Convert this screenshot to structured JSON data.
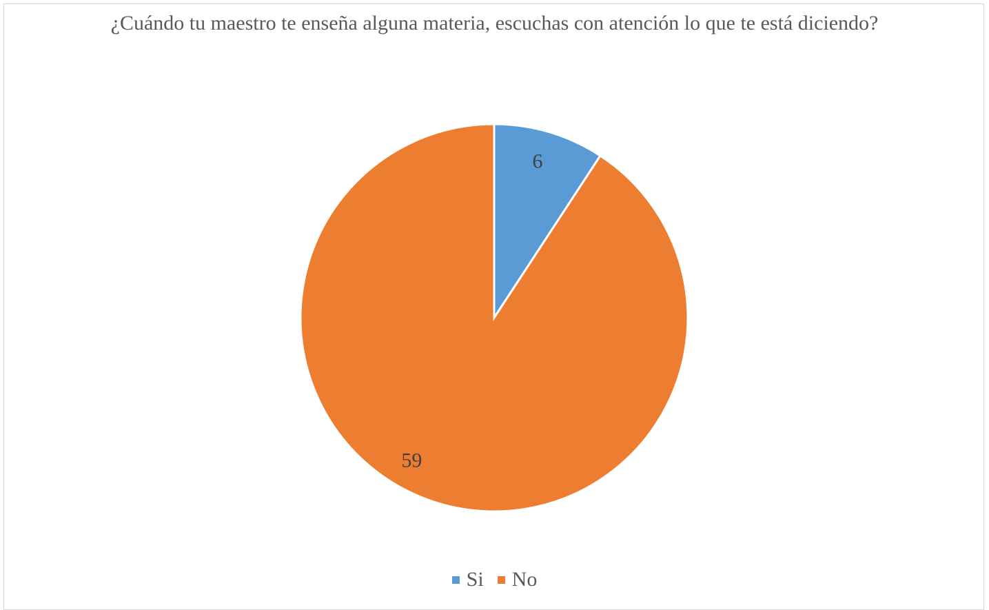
{
  "chart_data": {
    "type": "pie",
    "title": "¿Cuándo tu maestro te enseña alguna materia, escuchas con atención lo que te está diciendo?",
    "categories": [
      "Si",
      "No"
    ],
    "values": [
      6,
      59
    ],
    "data_labels": [
      "6",
      "59"
    ],
    "colors": [
      "#5b9bd5",
      "#ed7d31"
    ],
    "legend_position": "bottom"
  }
}
